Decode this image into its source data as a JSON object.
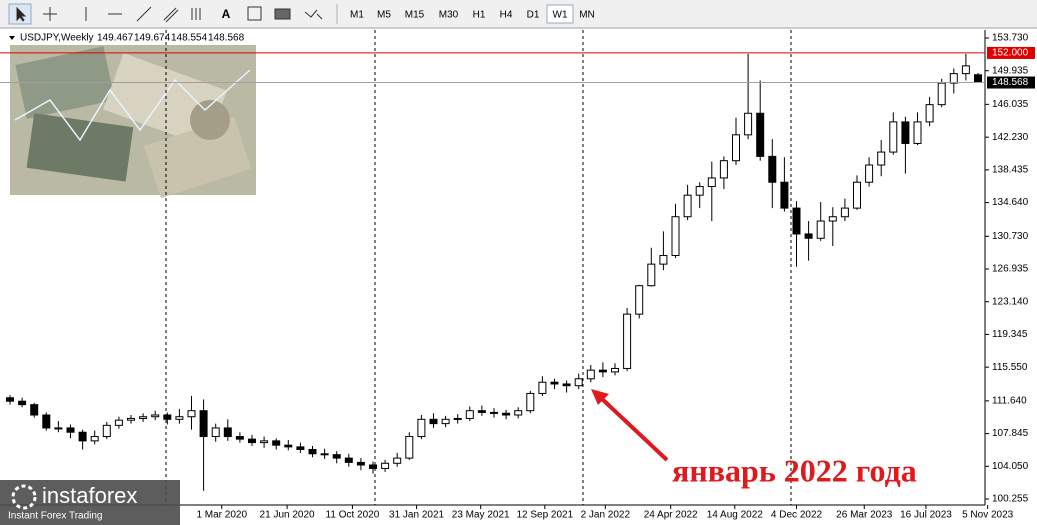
{
  "toolbar": {
    "text_tool": "A",
    "timeframes": [
      "M1",
      "M5",
      "M15",
      "M30",
      "H1",
      "H4",
      "D1",
      "W1",
      "MN"
    ],
    "active": "W1"
  },
  "chart_data": {
    "type": "candlestick",
    "symbol": "USDJPY,Weekly",
    "ohlc": [
      [
        112.0,
        112.3,
        111.2,
        111.6
      ],
      [
        111.6,
        112.0,
        110.9,
        111.2
      ],
      [
        111.2,
        111.4,
        109.7,
        110.0
      ],
      [
        110.0,
        110.3,
        108.2,
        108.5
      ],
      [
        108.5,
        109.3,
        108.0,
        108.5
      ],
      [
        108.5,
        108.9,
        107.3,
        108.0
      ],
      [
        108.0,
        108.3,
        106.0,
        107.0
      ],
      [
        107.0,
        108.2,
        106.6,
        107.5
      ],
      [
        107.5,
        109.2,
        107.2,
        108.8
      ],
      [
        108.8,
        109.8,
        108.4,
        109.4
      ],
      [
        109.4,
        110.0,
        109.0,
        109.6
      ],
      [
        109.6,
        110.2,
        109.2,
        109.8
      ],
      [
        109.8,
        110.5,
        109.4,
        110.0
      ],
      [
        110.0,
        110.3,
        108.9,
        109.5
      ],
      [
        109.5,
        110.7,
        109.0,
        109.8
      ],
      [
        109.8,
        112.2,
        108.3,
        110.5
      ],
      [
        110.5,
        111.8,
        101.2,
        107.5
      ],
      [
        107.5,
        109.0,
        106.9,
        108.5
      ],
      [
        108.5,
        109.5,
        107.0,
        107.5
      ],
      [
        107.5,
        108.0,
        106.8,
        107.2
      ],
      [
        107.2,
        107.7,
        106.4,
        106.8
      ],
      [
        106.8,
        107.5,
        106.2,
        107.0
      ],
      [
        107.0,
        107.3,
        106.0,
        106.5
      ],
      [
        106.5,
        107.1,
        105.9,
        106.3
      ],
      [
        106.3,
        106.8,
        105.6,
        106.0
      ],
      [
        106.0,
        106.4,
        105.1,
        105.5
      ],
      [
        105.5,
        106.1,
        104.9,
        105.4
      ],
      [
        105.4,
        105.8,
        104.4,
        105.0
      ],
      [
        105.0,
        105.5,
        104.0,
        104.5
      ],
      [
        104.5,
        105.0,
        103.6,
        104.2
      ],
      [
        104.2,
        104.6,
        103.2,
        103.8
      ],
      [
        103.8,
        104.8,
        103.4,
        104.4
      ],
      [
        104.4,
        105.6,
        104.0,
        105.0
      ],
      [
        105.0,
        108.0,
        104.8,
        107.5
      ],
      [
        107.5,
        110.0,
        107.2,
        109.5
      ],
      [
        109.5,
        110.2,
        108.5,
        109.0
      ],
      [
        109.0,
        109.9,
        108.6,
        109.5
      ],
      [
        109.5,
        110.1,
        109.0,
        109.6
      ],
      [
        109.6,
        111.0,
        109.3,
        110.5
      ],
      [
        110.5,
        111.1,
        109.9,
        110.3
      ],
      [
        110.3,
        110.8,
        109.7,
        110.2
      ],
      [
        110.2,
        110.6,
        109.5,
        110.0
      ],
      [
        110.0,
        110.9,
        109.6,
        110.5
      ],
      [
        110.5,
        112.8,
        110.2,
        112.5
      ],
      [
        112.5,
        114.5,
        112.2,
        113.8
      ],
      [
        113.8,
        114.2,
        113.0,
        113.6
      ],
      [
        113.6,
        114.0,
        112.6,
        113.4
      ],
      [
        113.4,
        114.8,
        113.0,
        114.2
      ],
      [
        114.2,
        115.8,
        113.8,
        115.2
      ],
      [
        115.2,
        116.1,
        114.4,
        115.0
      ],
      [
        115.0,
        116.0,
        114.6,
        115.4
      ],
      [
        115.4,
        122.4,
        115.1,
        121.7
      ],
      [
        121.7,
        125.1,
        121.2,
        125.0
      ],
      [
        125.0,
        129.4,
        124.9,
        127.5
      ],
      [
        127.5,
        131.3,
        126.8,
        128.5
      ],
      [
        128.5,
        134.5,
        128.2,
        133.0
      ],
      [
        133.0,
        136.7,
        132.6,
        135.5
      ],
      [
        135.5,
        137.0,
        134.0,
        136.5
      ],
      [
        136.5,
        139.4,
        132.5,
        137.5
      ],
      [
        137.5,
        140.0,
        136.2,
        139.5
      ],
      [
        139.5,
        144.5,
        139.0,
        142.5
      ],
      [
        142.5,
        151.9,
        142.0,
        145.0
      ],
      [
        145.0,
        148.8,
        139.5,
        140.0
      ],
      [
        140.0,
        142.0,
        134.0,
        137.0
      ],
      [
        137.0,
        139.9,
        133.6,
        134.0
      ],
      [
        134.0,
        134.8,
        127.2,
        131.0
      ],
      [
        131.0,
        132.5,
        127.9,
        130.5
      ],
      [
        130.5,
        134.7,
        130.2,
        132.5
      ],
      [
        132.5,
        134.1,
        129.6,
        133.0
      ],
      [
        133.0,
        135.1,
        132.5,
        134.0
      ],
      [
        134.0,
        137.8,
        133.8,
        137.0
      ],
      [
        137.0,
        139.9,
        136.5,
        139.0
      ],
      [
        139.0,
        141.9,
        137.7,
        140.5
      ],
      [
        140.5,
        145.1,
        140.2,
        144.0
      ],
      [
        144.0,
        144.6,
        138.0,
        141.5
      ],
      [
        141.5,
        145.1,
        141.3,
        144.0
      ],
      [
        144.0,
        146.9,
        143.5,
        146.0
      ],
      [
        146.0,
        149.0,
        145.7,
        148.5
      ],
      [
        148.5,
        150.2,
        147.3,
        149.6
      ],
      [
        149.6,
        151.9,
        148.8,
        150.5
      ],
      [
        149.467,
        149.674,
        148.554,
        148.568
      ]
    ],
    "ylim": [
      99.56,
      154.66
    ],
    "yticks": [
      {
        "value": 153.73,
        "label": "153.730"
      },
      {
        "value": 149.935,
        "label": "149.935"
      },
      {
        "value": 146.035,
        "label": "146.035"
      },
      {
        "value": 142.23,
        "label": "142.230"
      },
      {
        "value": 138.435,
        "label": "138.435"
      },
      {
        "value": 134.64,
        "label": "134.640"
      },
      {
        "value": 130.73,
        "label": "130.730"
      },
      {
        "value": 126.935,
        "label": "126.935"
      },
      {
        "value": 123.14,
        "label": "123.140"
      },
      {
        "value": 119.345,
        "label": "119.345"
      },
      {
        "value": 115.55,
        "label": "115.550"
      },
      {
        "value": 111.64,
        "label": "111.640"
      },
      {
        "value": 107.845,
        "label": "107.845"
      },
      {
        "value": 104.05,
        "label": "104.050"
      },
      {
        "value": 100.255,
        "label": "100.255"
      }
    ],
    "xticks": [
      {
        "value": 17.5,
        "label": "1 Mar 2020"
      },
      {
        "value": 22.9,
        "label": "21 Jun 2020"
      },
      {
        "value": 28.3,
        "label": "11 Oct 2020"
      },
      {
        "value": 33.6,
        "label": "31 Jan 2021"
      },
      {
        "value": 38.9,
        "label": "23 May 2021"
      },
      {
        "value": 44.2,
        "label": "12 Sep 2021"
      },
      {
        "value": 49.2,
        "label": "2 Jan 2022"
      },
      {
        "value": 54.6,
        "label": "24 Apr 2022"
      },
      {
        "value": 59.9,
        "label": "14 Aug 2022"
      },
      {
        "value": 65.0,
        "label": "4 Dec 2022"
      },
      {
        "value": 70.6,
        "label": "26 Mar 2023"
      },
      {
        "value": 75.7,
        "label": "16 Jul 2023"
      },
      {
        "value": 80.8,
        "label": "5 Nov 2023"
      }
    ],
    "level": {
      "value": 152,
      "label": "152.000",
      "color": "#e00000"
    },
    "up_color": "#ffffff",
    "down_color": "#000000",
    "annotation": "январь 2022 года"
  },
  "logo": {
    "name": "instaforex",
    "tagline": "Instant Forex Trading"
  }
}
